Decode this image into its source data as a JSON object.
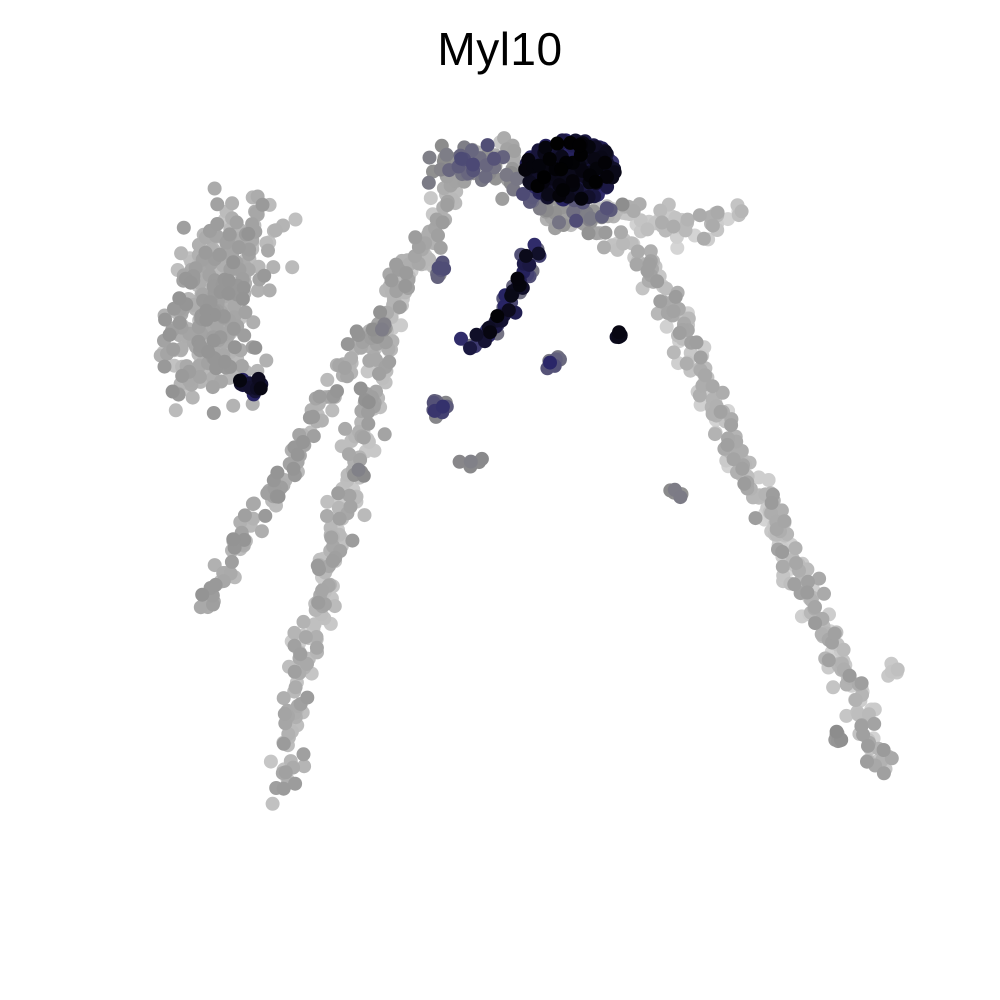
{
  "chart_data": {
    "type": "scatter",
    "title": "Myl10",
    "xlabel": "",
    "ylabel": "",
    "grid": false,
    "axes_visible": false,
    "legend": "none",
    "xlim": [
      0,
      100
    ],
    "ylim": [
      0,
      100
    ],
    "color_scale": {
      "low": "#dcdcdc",
      "mid": "#8c8c8c",
      "high_a": "#2a2668",
      "high_b": "#000000"
    },
    "branches": [
      {
        "name": "left-arm",
        "path": [
          [
            28,
            80
          ],
          [
            29,
            73
          ],
          [
            31,
            64
          ],
          [
            34,
            52
          ],
          [
            36,
            44
          ],
          [
            38,
            36
          ],
          [
            41,
            27
          ],
          [
            47,
            16
          ],
          [
            52,
            15
          ]
        ],
        "spread": 0.7,
        "count": 290,
        "level": [
          0.1,
          0.45
        ]
      },
      {
        "name": "left-arm-inner",
        "path": [
          [
            20,
            61
          ],
          [
            22,
            58
          ],
          [
            25,
            52
          ],
          [
            29,
            47
          ],
          [
            31,
            42
          ],
          [
            34,
            37
          ],
          [
            38,
            32
          ],
          [
            41,
            26
          ]
        ],
        "spread": 0.6,
        "count": 140,
        "level": [
          0.2,
          0.5
        ]
      },
      {
        "name": "left-blob",
        "path": [
          [
            20,
            38
          ],
          [
            21,
            33
          ],
          [
            22,
            28
          ],
          [
            24,
            23
          ]
        ],
        "spread": 2.2,
        "count": 360,
        "level": [
          0.15,
          0.5
        ]
      },
      {
        "name": "right-arm",
        "path": [
          [
            55,
            21
          ],
          [
            60,
            22
          ],
          [
            66,
            28
          ],
          [
            70,
            37
          ],
          [
            73,
            45
          ],
          [
            77,
            51
          ],
          [
            80,
            58
          ],
          [
            83,
            64
          ],
          [
            86,
            70
          ],
          [
            88,
            77
          ]
        ],
        "spread": 0.7,
        "count": 320,
        "level": [
          0.05,
          0.45
        ]
      },
      {
        "name": "right-flare",
        "path": [
          [
            60,
            21
          ],
          [
            66,
            22
          ],
          [
            70,
            23
          ],
          [
            74,
            21
          ]
        ],
        "spread": 0.6,
        "count": 60,
        "level": [
          0.05,
          0.35
        ]
      },
      {
        "name": "top-ridge",
        "path": [
          [
            44,
            16
          ],
          [
            48,
            17
          ],
          [
            52,
            18
          ],
          [
            56,
            20
          ],
          [
            61,
            22
          ]
        ],
        "spread": 1.0,
        "count": 120,
        "level": [
          0.4,
          0.75
        ]
      },
      {
        "name": "center-streak",
        "path": [
          [
            47,
            35
          ],
          [
            50,
            32
          ],
          [
            52,
            28
          ],
          [
            54,
            24
          ]
        ],
        "spread": 0.4,
        "count": 60,
        "level": [
          0.6,
          1.0
        ]
      }
    ],
    "hotspots": [
      {
        "name": "peak-cluster",
        "center": [
          57,
          17
        ],
        "radius": [
          4.5,
          3.2
        ],
        "count": 260,
        "level": [
          0.8,
          1.0
        ]
      },
      {
        "name": "left-hotspot",
        "center": [
          25,
          38.5
        ],
        "radius": [
          1.2,
          1.0
        ],
        "count": 14,
        "level": [
          0.85,
          1.0
        ]
      },
      {
        "name": "center-pair",
        "center": [
          61.7,
          33.5
        ],
        "radius": [
          0.4,
          0.4
        ],
        "count": 5,
        "level": [
          0.95,
          1.0
        ]
      }
    ],
    "islands": [
      {
        "center": [
          36.8,
          39.8
        ],
        "count": 8,
        "level": [
          0.3,
          0.55
        ]
      },
      {
        "center": [
          35.9,
          47.4
        ],
        "count": 5,
        "level": [
          0.5,
          0.6
        ]
      },
      {
        "center": [
          46.9,
          46.5
        ],
        "count": 5,
        "level": [
          0.55,
          0.6
        ]
      },
      {
        "name": "lower-right-island",
        "center": [
          84,
          73.8
        ],
        "count": 8,
        "level": [
          0.45,
          0.55
        ]
      },
      {
        "center": [
          89.6,
          67
        ],
        "count": 5,
        "level": [
          0.1,
          0.2
        ]
      },
      {
        "center": [
          67.5,
          49.2
        ],
        "count": 5,
        "level": [
          0.5,
          0.6
        ]
      },
      {
        "center": [
          43.8,
          40.8
        ],
        "count": 14,
        "level": [
          0.55,
          0.85
        ]
      },
      {
        "center": [
          55.5,
          36
        ],
        "count": 10,
        "level": [
          0.6,
          0.85
        ]
      },
      {
        "center": [
          44,
          27
        ],
        "count": 8,
        "level": [
          0.55,
          0.8
        ]
      },
      {
        "center": [
          38,
          33
        ],
        "count": 10,
        "level": [
          0.4,
          0.6
        ]
      }
    ]
  }
}
